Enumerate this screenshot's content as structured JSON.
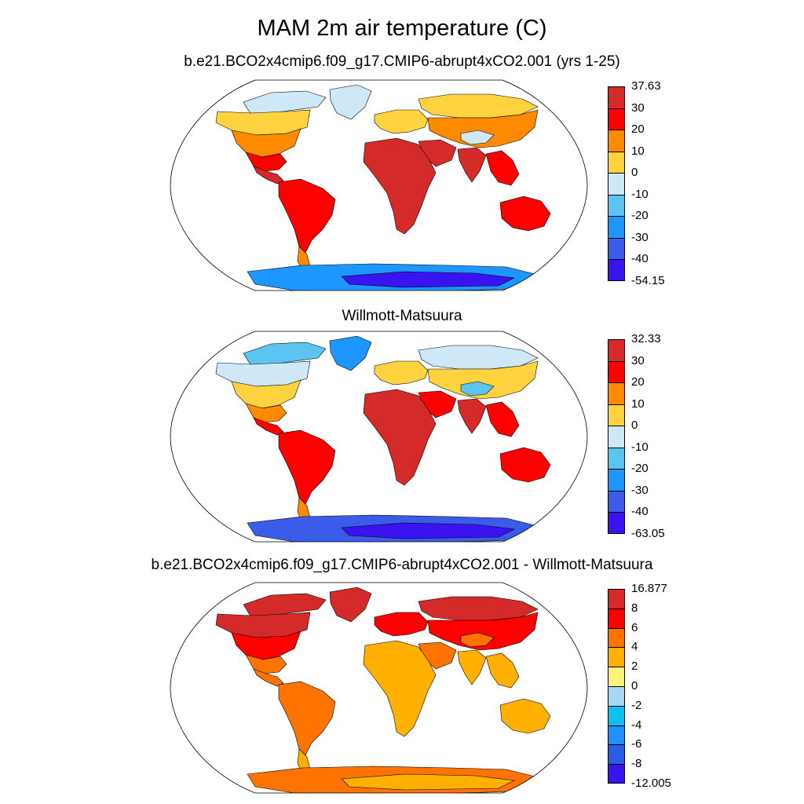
{
  "figure": {
    "title": "MAM 2m air temperature (C)"
  },
  "panels": [
    {
      "id": "model",
      "title": "b.e21.BCO2x4cmip6.f09_g17.CMIP6-abrupt4xCO2.001 (yrs 1-25)",
      "colorbar": {
        "labels": [
          "37.63",
          "30",
          "20",
          "10",
          "0",
          "-10",
          "-20",
          "-30",
          "-40",
          "-54.15"
        ],
        "colors": [
          "#d42a2a",
          "#ff0000",
          "#ff8a00",
          "#ffd23f",
          "#cfe8f7",
          "#5cc4f0",
          "#1e96ff",
          "#3a5ce8",
          "#3a14f0"
        ]
      },
      "regions": {
        "arctic_north_america": "#cfe8f7",
        "north_america_north": "#ffd23f",
        "north_america_mid": "#ff8a00",
        "north_america_south": "#ff0000",
        "central_america": "#d42a2a",
        "greenland": "#cfe8f7",
        "south_america": "#ff0000",
        "patagonia": "#ff8a00",
        "europe": "#ffd23f",
        "siberia": "#ffd23f",
        "asia_mid": "#ff8a00",
        "tibet": "#cfe8f7",
        "africa": "#d42a2a",
        "middle_east": "#d42a2a",
        "india": "#d42a2a",
        "southeast_asia": "#ff0000",
        "australia": "#ff0000",
        "antarctica": "#1e96ff",
        "antarctica_inner": "#3a14f0"
      }
    },
    {
      "id": "observed",
      "title": "Willmott-Matsuura",
      "colorbar": {
        "labels": [
          "32.33",
          "30",
          "20",
          "10",
          "0",
          "-10",
          "-20",
          "-30",
          "-40",
          "-63.05"
        ],
        "colors": [
          "#d42a2a",
          "#ff0000",
          "#ff8a00",
          "#ffd23f",
          "#cfe8f7",
          "#5cc4f0",
          "#1e96ff",
          "#3a5ce8",
          "#3a14f0"
        ]
      },
      "regions": {
        "arctic_north_america": "#5cc4f0",
        "north_america_north": "#cfe8f7",
        "north_america_mid": "#ffd23f",
        "north_america_south": "#ff8a00",
        "central_america": "#ff0000",
        "greenland": "#1e96ff",
        "south_america": "#ff0000",
        "patagonia": "#ff8a00",
        "europe": "#ffd23f",
        "siberia": "#cfe8f7",
        "asia_mid": "#ffd23f",
        "tibet": "#5cc4f0",
        "africa": "#d42a2a",
        "middle_east": "#ff0000",
        "india": "#d42a2a",
        "southeast_asia": "#ff0000",
        "australia": "#ff0000",
        "antarctica": "#3a5ce8",
        "antarctica_inner": "#3a14f0"
      }
    },
    {
      "id": "difference",
      "title": "b.e21.BCO2x4cmip6.f09_g17.CMIP6-abrupt4xCO2.001 - Willmott-Matsuura",
      "colorbar": {
        "labels": [
          "16.877",
          "8",
          "6",
          "4",
          "2",
          "0",
          "-2",
          "-4",
          "-6",
          "-8",
          "-12.005"
        ],
        "colors": [
          "#d42a2a",
          "#ff0000",
          "#ff7400",
          "#ffb000",
          "#fff07a",
          "#a6d8f2",
          "#10c0f0",
          "#1e90ff",
          "#2a5ce6",
          "#3a14f0"
        ]
      },
      "regions": {
        "arctic_north_america": "#d42a2a",
        "north_america_north": "#d42a2a",
        "north_america_mid": "#ff0000",
        "north_america_south": "#ff7400",
        "central_america": "#ff7400",
        "greenland": "#d42a2a",
        "south_america": "#ff7400",
        "patagonia": "#ffb000",
        "europe": "#ff0000",
        "siberia": "#d42a2a",
        "asia_mid": "#ff0000",
        "tibet": "#ff7400",
        "africa": "#ffb000",
        "middle_east": "#ff7400",
        "india": "#ffb000",
        "southeast_asia": "#ffb000",
        "australia": "#ffb000",
        "antarctica": "#ff7400",
        "antarctica_inner": "#ffb000"
      }
    }
  ]
}
